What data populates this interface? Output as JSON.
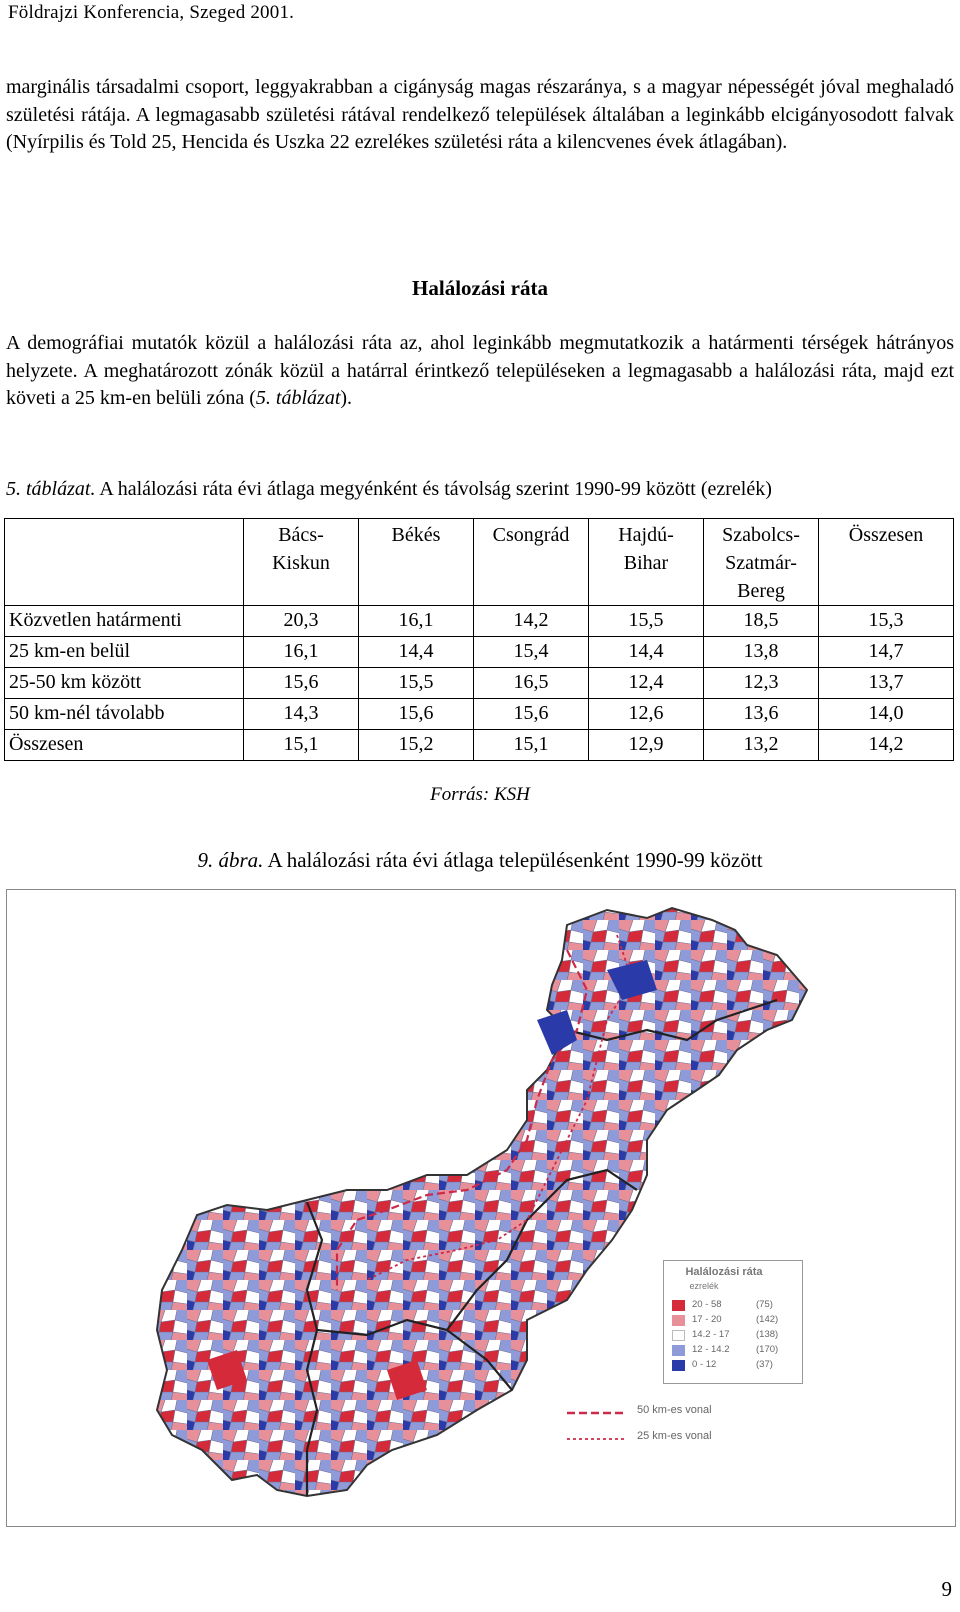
{
  "header": {
    "title": "Földrajzi Konferencia, Szeged 2001."
  },
  "paragraph1": "marginális társadalmi csoport, leggyakrabban a cigányság magas részaránya, s a magyar népességét jóval meghaladó születési rátája. A legmagasabb születési rátával rendelkező települések általában a leginkább elcigányosodott falvak (Nyírpilis és Told 25, Hencida és Uszka 22 ezrelékes születési ráta a kilencvenes évek átlagában).",
  "section_heading": "Halálozási ráta",
  "paragraph2": {
    "text": "A demográfiai mutatók közül a halálozási ráta az, ahol leginkább megmutatkozik a határmenti térségek hátrányos helyzete. A meghatározott zónák közül a határral érintkező településeken a legmagasabb a halálozási ráta, majd ezt követi a 25 km-en belüli zóna (",
    "ref": "5. táblázat",
    "end": ")."
  },
  "table_caption": {
    "label": "5. táblázat.",
    "text": " A halálozási ráta évi átlaga megyénként és távolság szerint 1990-99 között (ezrelék)"
  },
  "table": {
    "headers": [
      "",
      "Bács-\nKiskun",
      "Békés",
      "Csongrád",
      "Hajdú-\nBihar",
      "Szabolcs-\nSzatmár-\nBereg",
      "Összesen"
    ],
    "rows": [
      [
        "Közvetlen határmenti",
        "20,3",
        "16,1",
        "14,2",
        "15,5",
        "18,5",
        "15,3"
      ],
      [
        "25 km-en belül",
        "16,1",
        "14,4",
        "15,4",
        "14,4",
        "13,8",
        "14,7"
      ],
      [
        "25-50 km között",
        "15,6",
        "15,5",
        "16,5",
        "12,4",
        "12,3",
        "13,7"
      ],
      [
        "50 km-nél távolabb",
        "14,3",
        "15,6",
        "15,6",
        "12,6",
        "13,6",
        "14,0"
      ],
      [
        "Összesen",
        "15,1",
        "15,2",
        "15,1",
        "12,9",
        "13,2",
        "14,2"
      ]
    ]
  },
  "source": "Forrás: KSH",
  "figure_caption": {
    "label": "9. ábra.",
    "text": " A halálozási ráta évi átlaga településenként 1990-99 között"
  },
  "map": {
    "legend": {
      "title": "Halálozási ráta",
      "subtitle": "ezrelék",
      "classes": [
        {
          "range": "20 - 58",
          "count": "(75)",
          "color": "#d42a3a"
        },
        {
          "range": "17 - 20",
          "count": "(142)",
          "color": "#e8909a"
        },
        {
          "range": "14.2 - 17",
          "count": "(138)",
          "color": "#ffffff"
        },
        {
          "range": "12 - 14.2",
          "count": "(170)",
          "color": "#8f9ad8"
        },
        {
          "range": "0 - 12",
          "count": "(37)",
          "color": "#2a3aa8"
        }
      ]
    },
    "line_legend": [
      {
        "label": "50 km-es vonal",
        "color": "#cc2a4a"
      },
      {
        "label": "25 km-es vonal",
        "color": "#cc2a4a"
      }
    ]
  },
  "page_number": "9"
}
